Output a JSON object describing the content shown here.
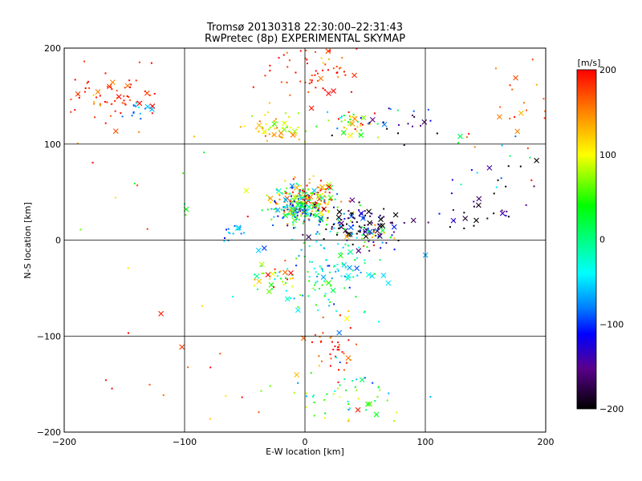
{
  "chart_data": {
    "type": "scatter",
    "title": "Tromsø 20130318 22:30:00–22:31:43",
    "subtitle": "RwPretec (8p) EXPERIMENTAL SKYMAP",
    "xlabel": "E-W location [km]",
    "ylabel": "N-S location [km]",
    "xlim": [
      -200,
      200
    ],
    "ylim": [
      -200,
      200
    ],
    "x_ticks": [
      "−200",
      "−100",
      "0",
      "100",
      "200"
    ],
    "y_ticks": [
      "−200",
      "−100",
      "0",
      "100",
      "200"
    ],
    "grid": true,
    "colorbar": {
      "label": "[m/s]",
      "range": [
        -200,
        200
      ],
      "tick_labels": [
        "200",
        "100",
        "0",
        "−100",
        "−200"
      ]
    },
    "marker_types": [
      "small-dot",
      "x-cross"
    ],
    "clusters": [
      {
        "x": 0,
        "y": 40,
        "sx": 14,
        "sy": 10,
        "n": 260,
        "v": 80,
        "vs": 90
      },
      {
        "x": -10,
        "y": 32,
        "sx": 10,
        "sy": 8,
        "n": 90,
        "v": -40,
        "vs": 70
      },
      {
        "x": 45,
        "y": 18,
        "sx": 22,
        "sy": 10,
        "n": 110,
        "v": -170,
        "vs": 50
      },
      {
        "x": 55,
        "y": 5,
        "sx": 10,
        "sy": 5,
        "n": 40,
        "v": 40,
        "vs": 110
      },
      {
        "x": -25,
        "y": 115,
        "sx": 12,
        "sy": 8,
        "n": 55,
        "v": 110,
        "vs": 40
      },
      {
        "x": 40,
        "y": 120,
        "sx": 15,
        "sy": 8,
        "n": 50,
        "v": 80,
        "vs": 110
      },
      {
        "x": 10,
        "y": 175,
        "sx": 18,
        "sy": 15,
        "n": 60,
        "v": 180,
        "vs": 30
      },
      {
        "x": 80,
        "y": 125,
        "sx": 15,
        "sy": 10,
        "n": 20,
        "v": -160,
        "vs": 60
      },
      {
        "x": -160,
        "y": 150,
        "sx": 20,
        "sy": 15,
        "n": 70,
        "v": 185,
        "vs": 25
      },
      {
        "x": -140,
        "y": 135,
        "sx": 5,
        "sy": 4,
        "n": 15,
        "v": -70,
        "vs": 20
      },
      {
        "x": 15,
        "y": -30,
        "sx": 25,
        "sy": 25,
        "n": 130,
        "v": -25,
        "vs": 40
      },
      {
        "x": -25,
        "y": -40,
        "sx": 12,
        "sy": 10,
        "n": 35,
        "v": 90,
        "vs": 100
      },
      {
        "x": 25,
        "y": -110,
        "sx": 10,
        "sy": 15,
        "n": 40,
        "v": 180,
        "vs": 40
      },
      {
        "x": 40,
        "y": -160,
        "sx": 30,
        "sy": 15,
        "n": 55,
        "v": 20,
        "vs": 60
      },
      {
        "x": -60,
        "y": 10,
        "sx": 6,
        "sy": 6,
        "n": 15,
        "v": -60,
        "vs": 30
      },
      {
        "x": 150,
        "y": 30,
        "sx": 30,
        "sy": 15,
        "n": 25,
        "v": -150,
        "vs": 50
      },
      {
        "x": 170,
        "y": 130,
        "sx": 25,
        "sy": 40,
        "n": 25,
        "v": 170,
        "vs": 30
      },
      {
        "x": 160,
        "y": 70,
        "sx": 25,
        "sy": 25,
        "n": 20,
        "v": -130,
        "vs": 100
      },
      {
        "x": -120,
        "y": -120,
        "sx": 60,
        "sy": 50,
        "n": 25,
        "v": 180,
        "vs": 30
      },
      {
        "x": -150,
        "y": 60,
        "sx": 40,
        "sy": 40,
        "n": 15,
        "v": 100,
        "vs": 100
      }
    ]
  }
}
